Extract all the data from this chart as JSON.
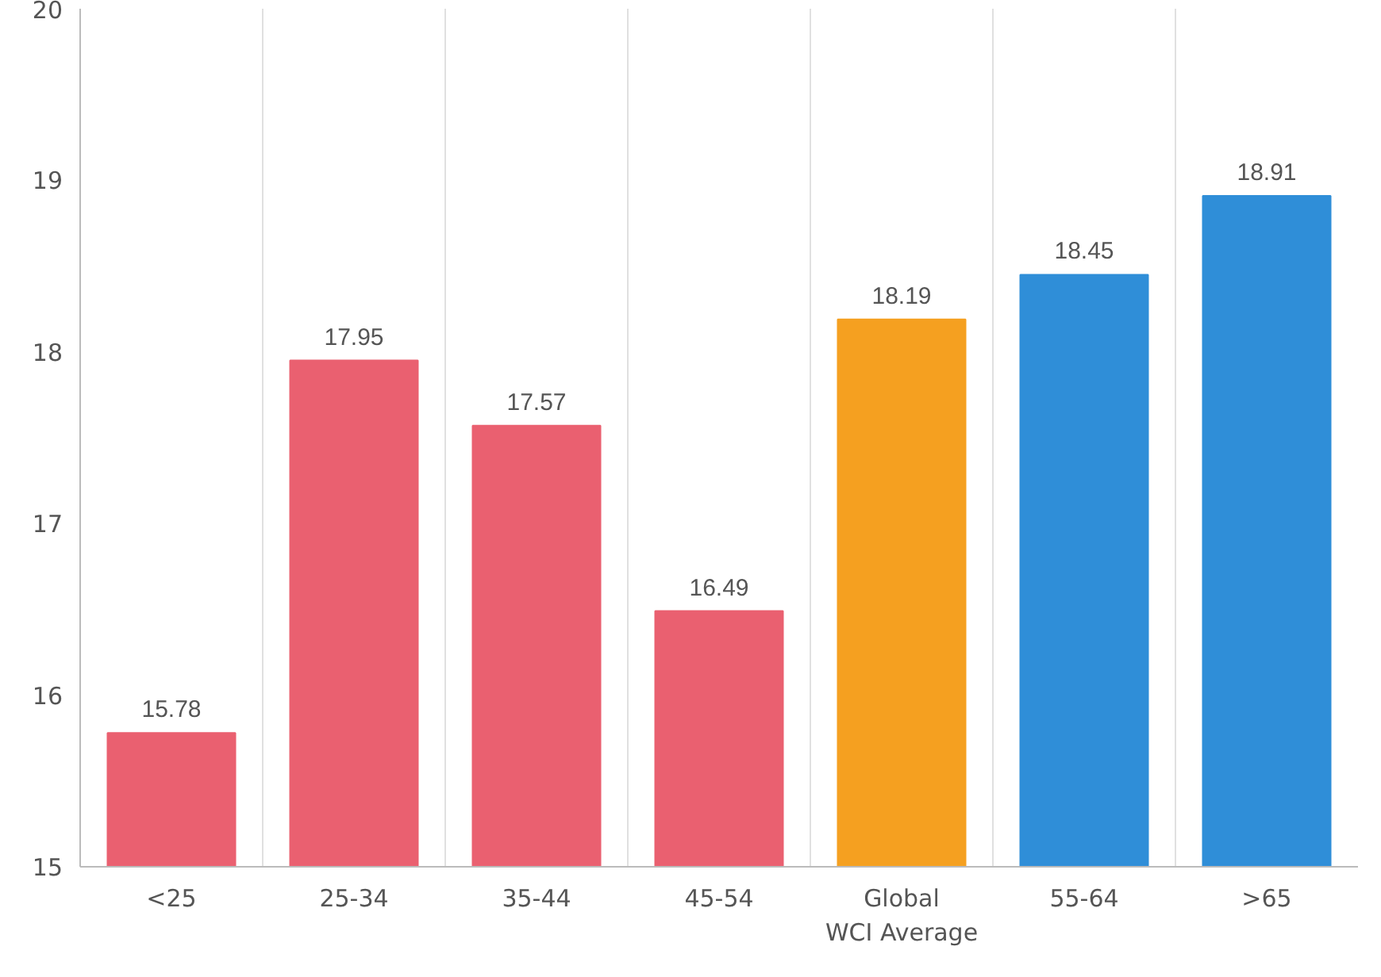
{
  "chart_data": {
    "type": "bar",
    "categories": [
      "<25",
      "25-34",
      "35-44",
      "45-54",
      "Global\nWCI Average",
      "55-64",
      ">65"
    ],
    "values": [
      15.78,
      17.95,
      17.57,
      16.49,
      18.19,
      18.45,
      18.91
    ],
    "colors": [
      "#ea6070",
      "#ea6070",
      "#ea6070",
      "#ea6070",
      "#f5a020",
      "#2f8ed8",
      "#2f8ed8"
    ],
    "ylim": [
      15,
      20
    ],
    "yticks": [
      15,
      16,
      17,
      18,
      19,
      20
    ],
    "grid": "x",
    "data_labels": true
  }
}
